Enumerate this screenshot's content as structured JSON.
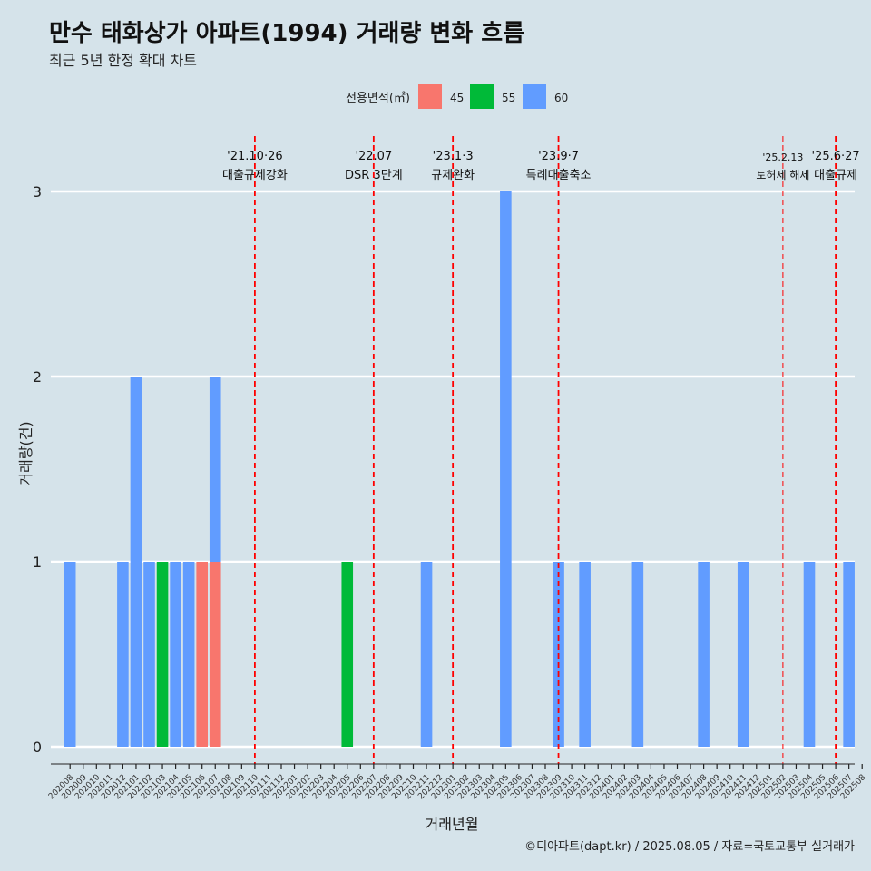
{
  "title": "만수 태화상가 아파트(1994) 거래량 변화 흐름",
  "subtitle": "최근 5년 한정 확대 차트",
  "caption": "©디아파트(dapt.kr) / 2025.08.05 / 자료=국토교통부 실거래가",
  "chart_data": {
    "type": "bar",
    "xlabel": "거래년월",
    "ylabel": "거래량(건)",
    "ylim": [
      0,
      3
    ],
    "yticks": [
      0,
      1,
      2,
      3
    ],
    "legend": {
      "title": "전용면적(㎡)",
      "position": "top",
      "entries": [
        {
          "name": "45",
          "color": "#f8766d"
        },
        {
          "name": "55",
          "color": "#00ba38"
        },
        {
          "name": "60",
          "color": "#619cff"
        }
      ]
    },
    "categories": [
      "202008",
      "202009",
      "202010",
      "202011",
      "202012",
      "202101",
      "202102",
      "202103",
      "202104",
      "202105",
      "202106",
      "202107",
      "202108",
      "202109",
      "202110",
      "202111",
      "202112",
      "202201",
      "202202",
      "202203",
      "202204",
      "202205",
      "202206",
      "202207",
      "202208",
      "202209",
      "202210",
      "202211",
      "202212",
      "202301",
      "202302",
      "202303",
      "202304",
      "202305",
      "202306",
      "202307",
      "202308",
      "202309",
      "202310",
      "202311",
      "202312",
      "202401",
      "202402",
      "202403",
      "202404",
      "202405",
      "202406",
      "202407",
      "202408",
      "202409",
      "202410",
      "202411",
      "202412",
      "202501",
      "202502",
      "202503",
      "202504",
      "202505",
      "202506",
      "202507",
      "202508"
    ],
    "bars": [
      {
        "x": "202008",
        "series": "60",
        "value": 1
      },
      {
        "x": "202012",
        "series": "60",
        "value": 1
      },
      {
        "x": "202101",
        "series": "60",
        "value": 2
      },
      {
        "x": "202102",
        "series": "60",
        "value": 1
      },
      {
        "x": "202103",
        "series": "55",
        "value": 1
      },
      {
        "x": "202104",
        "series": "60",
        "value": 1
      },
      {
        "x": "202105",
        "series": "60",
        "value": 1
      },
      {
        "x": "202106",
        "series": "45",
        "value": 1
      },
      {
        "x": "202107",
        "series": "45",
        "value": 1
      },
      {
        "x": "202107",
        "series": "60",
        "value": 1
      },
      {
        "x": "202205",
        "series": "55",
        "value": 1
      },
      {
        "x": "202211",
        "series": "60",
        "value": 1
      },
      {
        "x": "202305",
        "series": "60",
        "value": 3
      },
      {
        "x": "202309",
        "series": "60",
        "value": 1
      },
      {
        "x": "202311",
        "series": "60",
        "value": 1
      },
      {
        "x": "202403",
        "series": "60",
        "value": 1
      },
      {
        "x": "202408",
        "series": "60",
        "value": 1
      },
      {
        "x": "202411",
        "series": "60",
        "value": 1
      },
      {
        "x": "202504",
        "series": "60",
        "value": 1
      },
      {
        "x": "202507",
        "series": "60",
        "value": 1
      }
    ],
    "annotations": [
      {
        "x": "202110",
        "date": "'21.10·26",
        "label": "대출규제강화",
        "style": "dashed"
      },
      {
        "x": "202207",
        "date": "'22.07",
        "label": "DSR 3단계",
        "style": "dashed"
      },
      {
        "x": "202301",
        "date": "'23.1·3",
        "label": "규제완화",
        "style": "dashed"
      },
      {
        "x": "202309",
        "date": "'23.9·7",
        "label": "특례대출축소",
        "style": "dashed"
      },
      {
        "x": "202502",
        "date": "'25.2.13",
        "label": "토허제 해제",
        "style": "thin"
      },
      {
        "x": "202506",
        "date": "'25.6·27",
        "label": "대출규제",
        "style": "dashed"
      }
    ]
  }
}
